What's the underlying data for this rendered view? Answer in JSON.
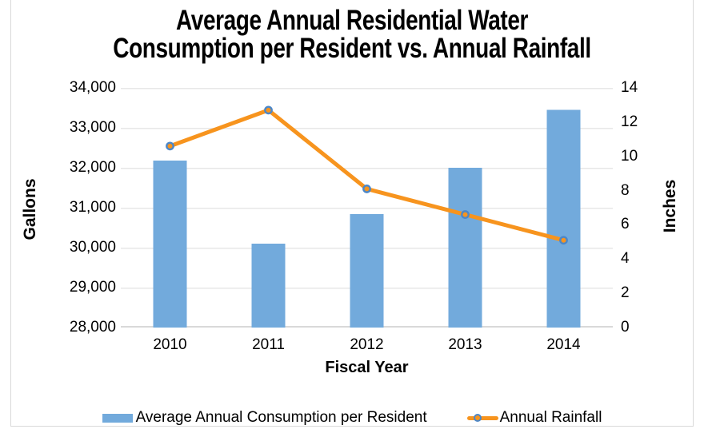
{
  "title": {
    "line1": "Average Annual Residential Water",
    "line2": "Consumption per Resident vs. Annual Rainfall"
  },
  "axes": {
    "left": {
      "title": "Gallons",
      "ticks": [
        "34,000",
        "33,000",
        "32,000",
        "31,000",
        "30,000",
        "29,000",
        "28,000"
      ]
    },
    "right": {
      "title": "Inches",
      "ticks": [
        "14",
        "12",
        "10",
        "8",
        "6",
        "4",
        "2",
        "0"
      ]
    },
    "x": {
      "title": "Fiscal Year",
      "categories": [
        "2010",
        "2011",
        "2012",
        "2013",
        "2014"
      ]
    }
  },
  "legend": {
    "bar_label": "Average Annual Consumption per Resident",
    "line_label": "Annual Rainfall"
  },
  "colors": {
    "bar": "#72AADC",
    "line": "#F7941E",
    "marker_fill": "#F7941E",
    "marker_ring": "#4C87C8",
    "grid": "#E7E7E7",
    "axis_line": "#D9D9D9",
    "frame_border": "#D9D9D9",
    "text": "#000000"
  },
  "chart_data": {
    "type": "combo",
    "categories": [
      "2010",
      "2011",
      "2012",
      "2013",
      "2014"
    ],
    "series": [
      {
        "name": "Average Annual Consumption per Resident",
        "type": "bar",
        "y_axis": "left",
        "values": [
          32180,
          30100,
          30840,
          32000,
          33450
        ]
      },
      {
        "name": "Annual Rainfall",
        "type": "line",
        "y_axis": "right",
        "values": [
          10.6,
          12.7,
          8.1,
          6.6,
          5.1
        ]
      }
    ],
    "title": "Average Annual Residential Water Consumption per Resident vs. Annual Rainfall",
    "xlabel": "Fiscal Year",
    "ylabel_left": "Gallons",
    "ylabel_right": "Inches",
    "ylim_left": [
      28000,
      34000
    ],
    "ytick_step_left": 1000,
    "ylim_right": [
      0,
      14
    ],
    "ytick_step_right": 2,
    "grid": true,
    "legend_position": "bottom"
  }
}
